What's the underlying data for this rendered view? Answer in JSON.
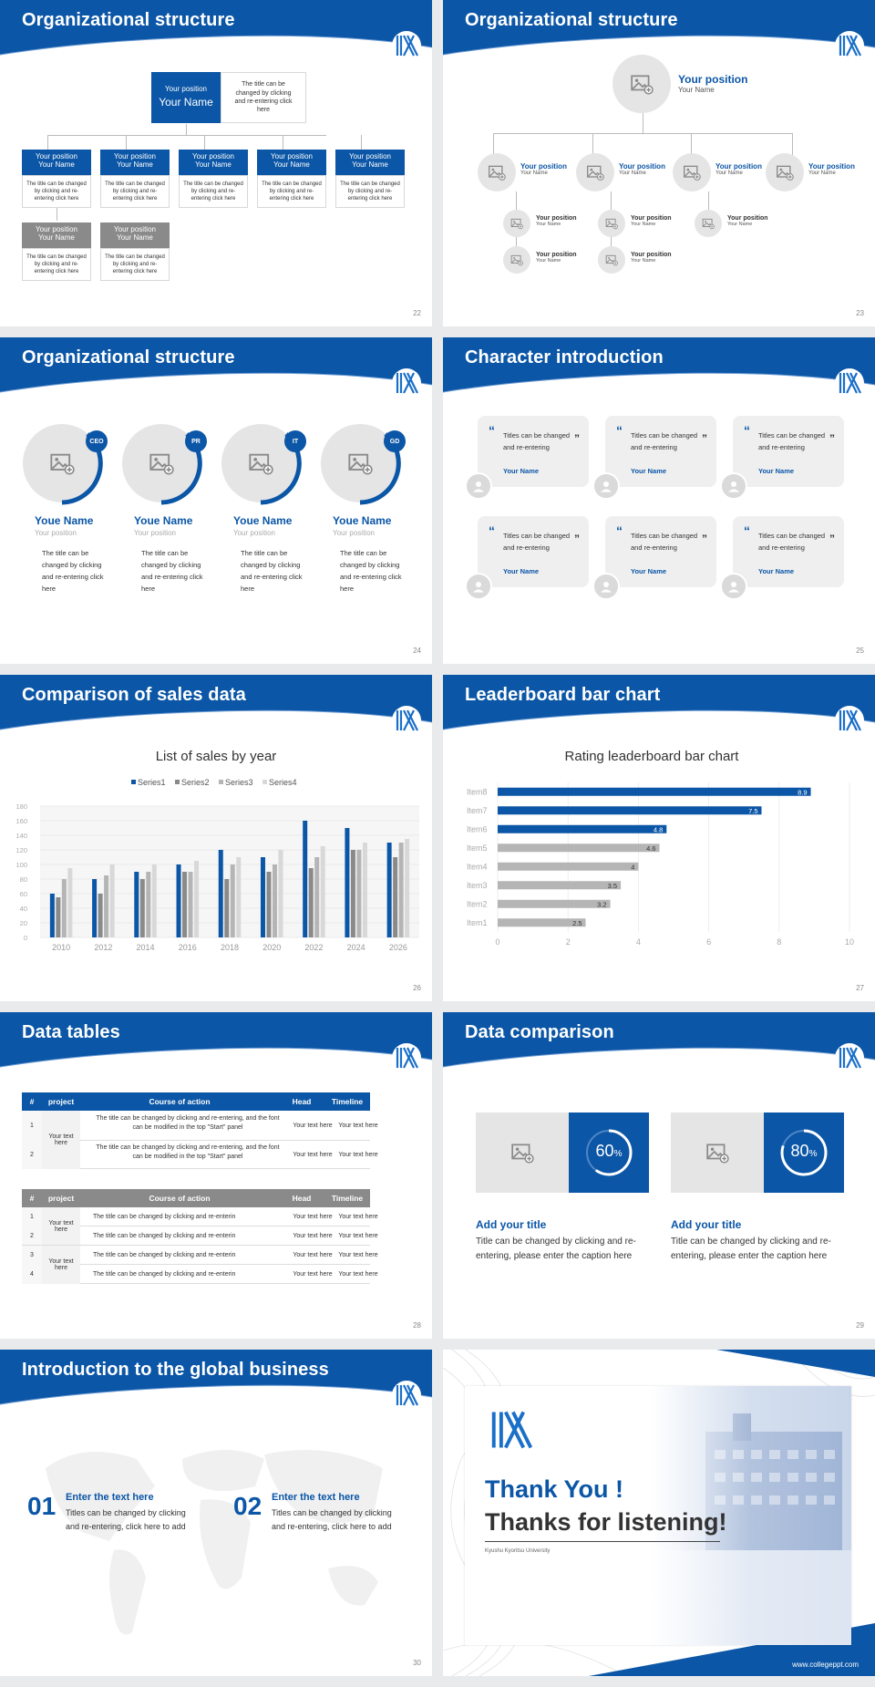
{
  "colors": {
    "brand": "#0b56a6",
    "gray_bar": "#b5b5b5",
    "placeholder": "#e5e5e6",
    "dark_gray": "#8a8a8a"
  },
  "slides": {
    "s22": {
      "title": "Organizational structure",
      "num": "22",
      "top": {
        "pos": "Your position",
        "name": "Your Name",
        "text": "The title can be changed by clicking and re-entering click here"
      },
      "blue_boxes": [
        {
          "pos": "Your position",
          "name": "Your Name",
          "text": "The title can be changed by clicking and re-entering click here"
        },
        {
          "pos": "Your position",
          "name": "Your Name",
          "text": "The title can be changed by clicking and re-entering click here"
        },
        {
          "pos": "Your position",
          "name": "Your Name",
          "text": "The title can be changed by clicking and re-entering click here"
        },
        {
          "pos": "Your position",
          "name": "Your Name",
          "text": "The title can be changed by clicking and re-entering click here"
        },
        {
          "pos": "Your position",
          "name": "Your Name",
          "text": "The title can be changed by clicking and re-entering click here"
        }
      ],
      "gray_boxes": [
        {
          "pos": "Your position",
          "name": "Your Name",
          "text": "The title can be changed by clicking and re-entering click here"
        },
        {
          "pos": "Your position",
          "name": "Your Name",
          "text": "The title can be changed by clicking and re-entering click here"
        }
      ]
    },
    "s23": {
      "title": "Organizational structure",
      "num": "23",
      "top": {
        "pos": "Your position",
        "name": "Your Name"
      },
      "row1": [
        {
          "pos": "Your position",
          "name": "Your Name"
        },
        {
          "pos": "Your position",
          "name": "Your Name"
        },
        {
          "pos": "Your position",
          "name": "Your Name"
        },
        {
          "pos": "Your position",
          "name": "Your Name"
        }
      ],
      "row2": [
        {
          "pos": "Your position",
          "name": "Your Name"
        },
        {
          "pos": "Your position",
          "name": "Your Name"
        },
        {
          "pos": "Your position",
          "name": "Your Name"
        }
      ],
      "row3": [
        {
          "pos": "Your position",
          "name": "Your Name"
        },
        {
          "pos": "Your position",
          "name": "Your Name"
        }
      ]
    },
    "s24": {
      "title": "Organizational structure",
      "num": "24",
      "people": [
        {
          "badge": "CEO",
          "name": "Youe Name",
          "pos": "Your position",
          "text": "The title can be changed by clicking and re-entering click here"
        },
        {
          "badge": "PR",
          "name": "Youe Name",
          "pos": "Your position",
          "text": "The title can be changed by clicking and re-entering click here"
        },
        {
          "badge": "IT",
          "name": "Youe Name",
          "pos": "Your position",
          "text": "The title can be changed by clicking and re-entering click here"
        },
        {
          "badge": "GD",
          "name": "Youe Name",
          "pos": "Your position",
          "text": "The title can be changed by clicking and re-entering click here"
        }
      ]
    },
    "s25": {
      "title": "Character introduction",
      "num": "25",
      "cards": [
        {
          "text": "Titles can be changed and re-entering",
          "name": "Your Name"
        },
        {
          "text": "Titles can be changed and re-entering",
          "name": "Your Name"
        },
        {
          "text": "Titles can be changed and re-entering",
          "name": "Your Name"
        },
        {
          "text": "Titles can be changed and re-entering",
          "name": "Your Name"
        },
        {
          "text": "Titles can be changed and re-entering",
          "name": "Your Name"
        },
        {
          "text": "Titles can be changed and re-entering",
          "name": "Your Name"
        }
      ]
    },
    "s26": {
      "title": "Comparison of sales data",
      "num": "26"
    },
    "s27": {
      "title": "Leaderboard bar chart",
      "num": "27"
    },
    "s28": {
      "title": "Data tables",
      "num": "28",
      "t1": {
        "headers": [
          "#",
          "project",
          "Course of action",
          "Head",
          "Timeline"
        ],
        "merged": "Your text here",
        "rows": [
          {
            "n": "1",
            "course": "The title can be changed by clicking and re-entering, and the font can be modified in the top \"Start\" panel",
            "head": "Your text here",
            "time": "Your text here"
          },
          {
            "n": "2",
            "course": "The title can be changed by clicking and re-entering, and the font can be modified in the top \"Start\" panel",
            "head": "Your text here",
            "time": "Your text here"
          }
        ]
      },
      "t2": {
        "headers": [
          "#",
          "project",
          "Course of action",
          "Head",
          "Timeline"
        ],
        "merged": [
          "Your text here",
          "Your text here"
        ],
        "rows": [
          {
            "n": "1",
            "course": "The title can be changed by clicking and re-enterin",
            "head": "Your text here",
            "time": "Your text here"
          },
          {
            "n": "2",
            "course": "The title can be changed by clicking and re-enterin",
            "head": "Your text here",
            "time": "Your text here"
          },
          {
            "n": "3",
            "course": "The title can be changed by clicking and re-enterin",
            "head": "Your text here",
            "time": "Your text here"
          },
          {
            "n": "4",
            "course": "The title can be changed by clicking and re-enterin",
            "head": "Your text here",
            "time": "Your text here"
          }
        ]
      }
    },
    "s29": {
      "title": "Data comparison",
      "num": "29",
      "items": [
        {
          "pct": "60",
          "unit": "%",
          "value": 60,
          "title": "Add your title",
          "text": "Title can be changed by clicking and re-entering, please enter the caption here"
        },
        {
          "pct": "80",
          "unit": "%",
          "value": 80,
          "title": "Add your title",
          "text": "Title can be changed by clicking and re-entering, please enter the caption here"
        }
      ]
    },
    "s30": {
      "title": "Introduction to the global business",
      "num": "30",
      "items": [
        {
          "n": "01",
          "title": "Enter the text here",
          "text": "Titles can be changed by clicking and re-entering, click here to add"
        },
        {
          "n": "02",
          "title": "Enter the text here",
          "text": "Titles can be changed by clicking and re-entering, click here to add"
        }
      ]
    },
    "s31": {
      "line1": "Thank You !",
      "line2": "Thanks for listening!",
      "university": "Kyushu Kyoritsu University",
      "site": "www.collegeppt.com"
    }
  },
  "chart_data": [
    {
      "type": "bar",
      "title": "List of sales by year",
      "categories": [
        "2010",
        "2012",
        "2014",
        "2016",
        "2018",
        "2020",
        "2022",
        "2024",
        "2026"
      ],
      "series": [
        {
          "name": "Series1",
          "color": "#0b56a6",
          "values": [
            60,
            80,
            90,
            100,
            120,
            110,
            160,
            150,
            130
          ]
        },
        {
          "name": "Series2",
          "color": "#8a8a8a",
          "values": [
            55,
            60,
            80,
            90,
            80,
            90,
            95,
            120,
            110
          ]
        },
        {
          "name": "Series3",
          "color": "#b5b5b5",
          "values": [
            80,
            85,
            90,
            90,
            100,
            100,
            110,
            120,
            130
          ]
        },
        {
          "name": "Series4",
          "color": "#d8d8d8",
          "values": [
            95,
            100,
            100,
            105,
            110,
            120,
            125,
            130,
            135
          ]
        }
      ],
      "ylim": [
        0,
        180
      ],
      "yticks": [
        0,
        20,
        40,
        60,
        80,
        100,
        120,
        140,
        160,
        180
      ],
      "legend": "top",
      "grid": true
    },
    {
      "type": "bar",
      "orientation": "horizontal",
      "title": "Rating leaderboard bar chart",
      "categories": [
        "Item8",
        "Item7",
        "Item6",
        "Item5",
        "Item4",
        "Item3",
        "Item2",
        "Item1"
      ],
      "values": [
        8.9,
        7.5,
        4.8,
        4.6,
        4,
        3.5,
        3.2,
        2.5
      ],
      "labels": [
        "8.9",
        "7.5",
        "4.8",
        "4.6",
        "4",
        "3.5",
        "3.2",
        "2.5"
      ],
      "colors": [
        "#0b56a6",
        "#0b56a6",
        "#0b56a6",
        "#b5b5b5",
        "#b5b5b5",
        "#b5b5b5",
        "#b5b5b5",
        "#b5b5b5"
      ],
      "xlim": [
        0,
        10
      ],
      "xticks": [
        "0",
        "2",
        "4",
        "6",
        "8",
        "10"
      ],
      "grid": true
    }
  ]
}
